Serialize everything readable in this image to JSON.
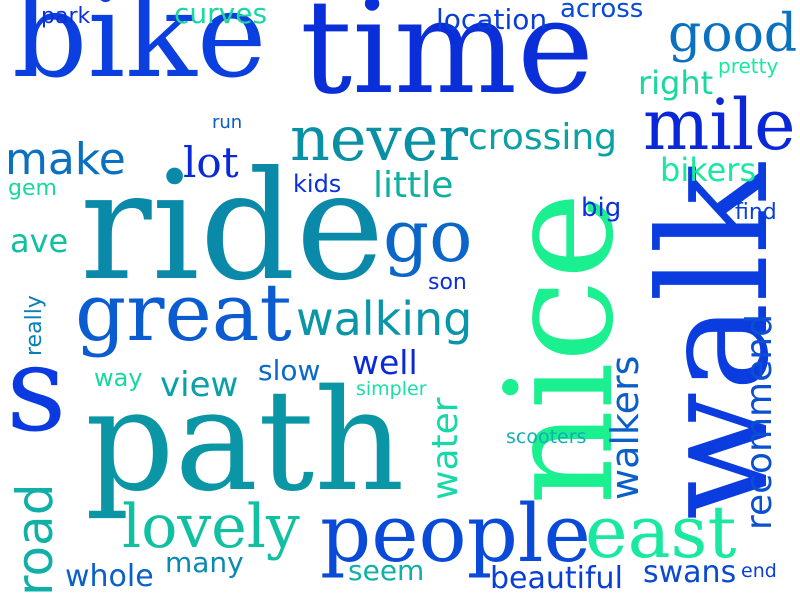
{
  "words": [
    {
      "text": "bike",
      "color": "#0b3fe0"
    },
    {
      "text": "time",
      "color": "#0a2fd8"
    },
    {
      "text": "ride",
      "color": "#0a8aa8"
    },
    {
      "text": "path",
      "color": "#0a96a4"
    },
    {
      "text": "nice",
      "color": "#1af090"
    },
    {
      "text": "walk",
      "color": "#0a3ce0"
    },
    {
      "text": "s",
      "color": "#0a3ae0"
    },
    {
      "text": "great",
      "color": "#0a5cd0"
    },
    {
      "text": "people",
      "color": "#0a4ad8"
    },
    {
      "text": "east",
      "color": "#18e8a0"
    },
    {
      "text": "mile",
      "color": "#0a28d8"
    },
    {
      "text": "never",
      "color": "#0a90a4"
    },
    {
      "text": "go",
      "color": "#0a66c8"
    },
    {
      "text": "good",
      "color": "#0a70c0"
    },
    {
      "text": "lovely",
      "color": "#10c0a0"
    },
    {
      "text": "walking",
      "color": "#0a96a8"
    },
    {
      "text": "crossing",
      "color": "#0aa0a4"
    },
    {
      "text": "make",
      "color": "#0a70c0"
    },
    {
      "text": "road",
      "color": "#10b0a8"
    },
    {
      "text": "recommend",
      "color": "#0a50d0"
    },
    {
      "text": "walkers",
      "color": "#0a60c8"
    },
    {
      "text": "lot",
      "color": "#0a2ad8"
    },
    {
      "text": "little",
      "color": "#10b0a0"
    },
    {
      "text": "view",
      "color": "#0aa0a8"
    },
    {
      "text": "water",
      "color": "#18d8a8"
    },
    {
      "text": "well",
      "color": "#0a2ad8"
    },
    {
      "text": "slow",
      "color": "#0a6ac8"
    },
    {
      "text": "ave",
      "color": "#10c0a0"
    },
    {
      "text": "right",
      "color": "#18d8a0"
    },
    {
      "text": "bikers",
      "color": "#18e8a0"
    },
    {
      "text": "whole",
      "color": "#0a60c8"
    },
    {
      "text": "many",
      "color": "#0a8ab0"
    },
    {
      "text": "beautiful",
      "color": "#0a3ed8"
    },
    {
      "text": "swans",
      "color": "#0a4ad0"
    },
    {
      "text": "seem",
      "color": "#10b0a8"
    },
    {
      "text": "curves",
      "color": "#18d8a0"
    },
    {
      "text": "location",
      "color": "#0a3ed8"
    },
    {
      "text": "across",
      "color": "#0a4ad8"
    },
    {
      "text": "park",
      "color": "#0a30d8"
    },
    {
      "text": "kids",
      "color": "#0a30d8"
    },
    {
      "text": "big",
      "color": "#0a30d8"
    },
    {
      "text": "find",
      "color": "#0a40d8"
    },
    {
      "text": "son",
      "color": "#0a30d8"
    },
    {
      "text": "way",
      "color": "#18d8a0"
    },
    {
      "text": "really",
      "color": "#0a80b8"
    },
    {
      "text": "gem",
      "color": "#18d8a0"
    },
    {
      "text": "run",
      "color": "#0a5ad0"
    },
    {
      "text": "pretty",
      "color": "#18e8a0"
    },
    {
      "text": "simpler",
      "color": "#18e0a8"
    },
    {
      "text": "scooters",
      "color": "#10b0b0"
    },
    {
      "text": "end",
      "color": "#0a40d8"
    }
  ]
}
